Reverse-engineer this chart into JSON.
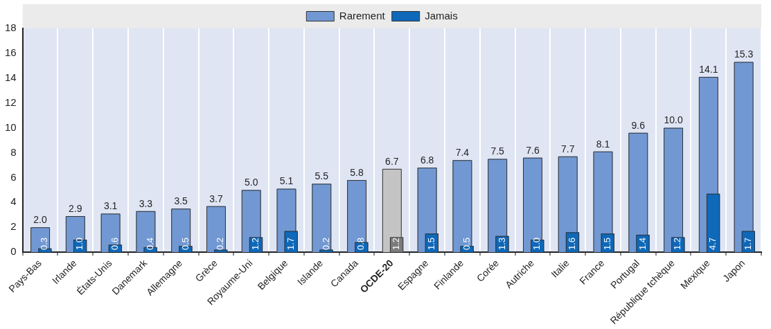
{
  "chart_data": {
    "type": "bar",
    "categories": [
      "Pays-Bas",
      "Irlande",
      "États-Unis",
      "Danemark",
      "Allemagne",
      "Grèce",
      "Royaume-Uni",
      "Belgique",
      "Islande",
      "Canada",
      "OCDE-20",
      "Espagne",
      "Finlande",
      "Corée",
      "Autriche",
      "Italie",
      "France",
      "Portugal",
      "République tchèque",
      "Mexique",
      "Japon"
    ],
    "series": [
      {
        "name": "Rarement",
        "color": "#7198d2",
        "colors": [
          "#7198d2",
          "#7198d2",
          "#7198d2",
          "#7198d2",
          "#7198d2",
          "#7198d2",
          "#7198d2",
          "#7198d2",
          "#7198d2",
          "#7198d2",
          "#c4c4c4",
          "#7198d2",
          "#7198d2",
          "#7198d2",
          "#7198d2",
          "#7198d2",
          "#7198d2",
          "#7198d2",
          "#7198d2",
          "#7198d2",
          "#7198d2"
        ],
        "values": [
          2.0,
          2.9,
          3.1,
          3.3,
          3.5,
          3.7,
          5.0,
          5.1,
          5.5,
          5.8,
          6.7,
          6.8,
          7.4,
          7.5,
          7.6,
          7.7,
          8.1,
          9.6,
          10.0,
          14.1,
          15.3
        ],
        "value_labels": [
          "2.0",
          "2.9",
          "3.1",
          "3.3",
          "3.5",
          "3.7",
          "5.0",
          "5.1",
          "5.5",
          "5.8",
          "6.7",
          "6.8",
          "7.4",
          "7.5",
          "7.6",
          "7.7",
          "8.1",
          "9.6",
          "10.0",
          "14.1",
          "15.3"
        ]
      },
      {
        "name": "Jamais",
        "color": "#0f68b8",
        "colors": [
          "#0f68b8",
          "#0f68b8",
          "#0f68b8",
          "#0f68b8",
          "#0f68b8",
          "#0f68b8",
          "#0f68b8",
          "#0f68b8",
          "#0f68b8",
          "#0f68b8",
          "#7b7b7b",
          "#0f68b8",
          "#0f68b8",
          "#0f68b8",
          "#0f68b8",
          "#0f68b8",
          "#0f68b8",
          "#0f68b8",
          "#0f68b8",
          "#0f68b8",
          "#0f68b8"
        ],
        "values": [
          0.3,
          1.0,
          0.6,
          0.4,
          0.5,
          0.2,
          1.2,
          1.7,
          0.2,
          0.8,
          1.2,
          1.5,
          0.5,
          1.3,
          1.0,
          1.6,
          1.5,
          1.4,
          1.2,
          4.7,
          1.7
        ],
        "value_labels": [
          "0.3",
          "1.0",
          "0.6",
          "0.4",
          "0.5",
          "0.2",
          "1.2",
          "1.7",
          "0.2",
          "0.8",
          "1.2",
          "1.5",
          "0.5",
          "1.3",
          "1.0",
          "1.6",
          "1.5",
          "1.4",
          "1.2",
          "4.7",
          "1.7"
        ]
      }
    ],
    "ylim": [
      0,
      18
    ],
    "yticks": [
      0,
      2,
      4,
      6,
      8,
      10,
      12,
      14,
      16,
      18
    ],
    "grid": "x",
    "legend": "top"
  }
}
